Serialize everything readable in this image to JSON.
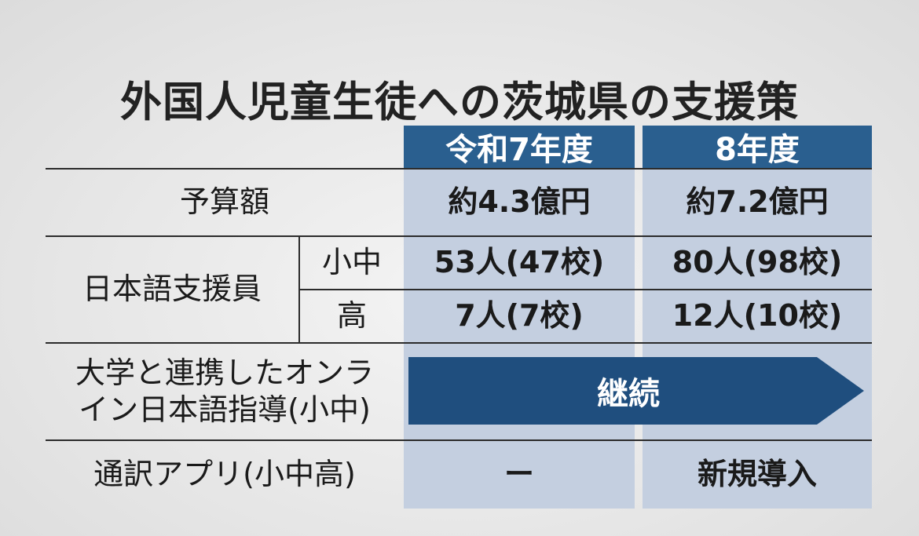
{
  "title": "外国人児童生徒への茨城県の支援策",
  "columns": [
    "令和7年度",
    "8年度"
  ],
  "rows": {
    "budget": {
      "label": "予算額",
      "values": [
        "約4.3億円",
        "約7.2億円"
      ]
    },
    "support_staff": {
      "label": "日本語支援員",
      "sub": [
        {
          "label": "小中",
          "values": [
            "53人(47校)",
            "80人(98校)"
          ]
        },
        {
          "label": "高",
          "values": [
            "7人(7校)",
            "12人(10校)"
          ]
        }
      ]
    },
    "online": {
      "label_line1": "大学と連携したオンラ",
      "label_line2": "イン日本語指導(小中)",
      "arrow_text": "継続"
    },
    "app": {
      "label": "通訳アプリ(小中高)",
      "values": [
        "ー",
        "新規導入"
      ]
    }
  },
  "colors": {
    "header_blue": "#2a5f8f",
    "column_shade": "#c4cfe0",
    "arrow_blue": "#1f4e7e"
  }
}
